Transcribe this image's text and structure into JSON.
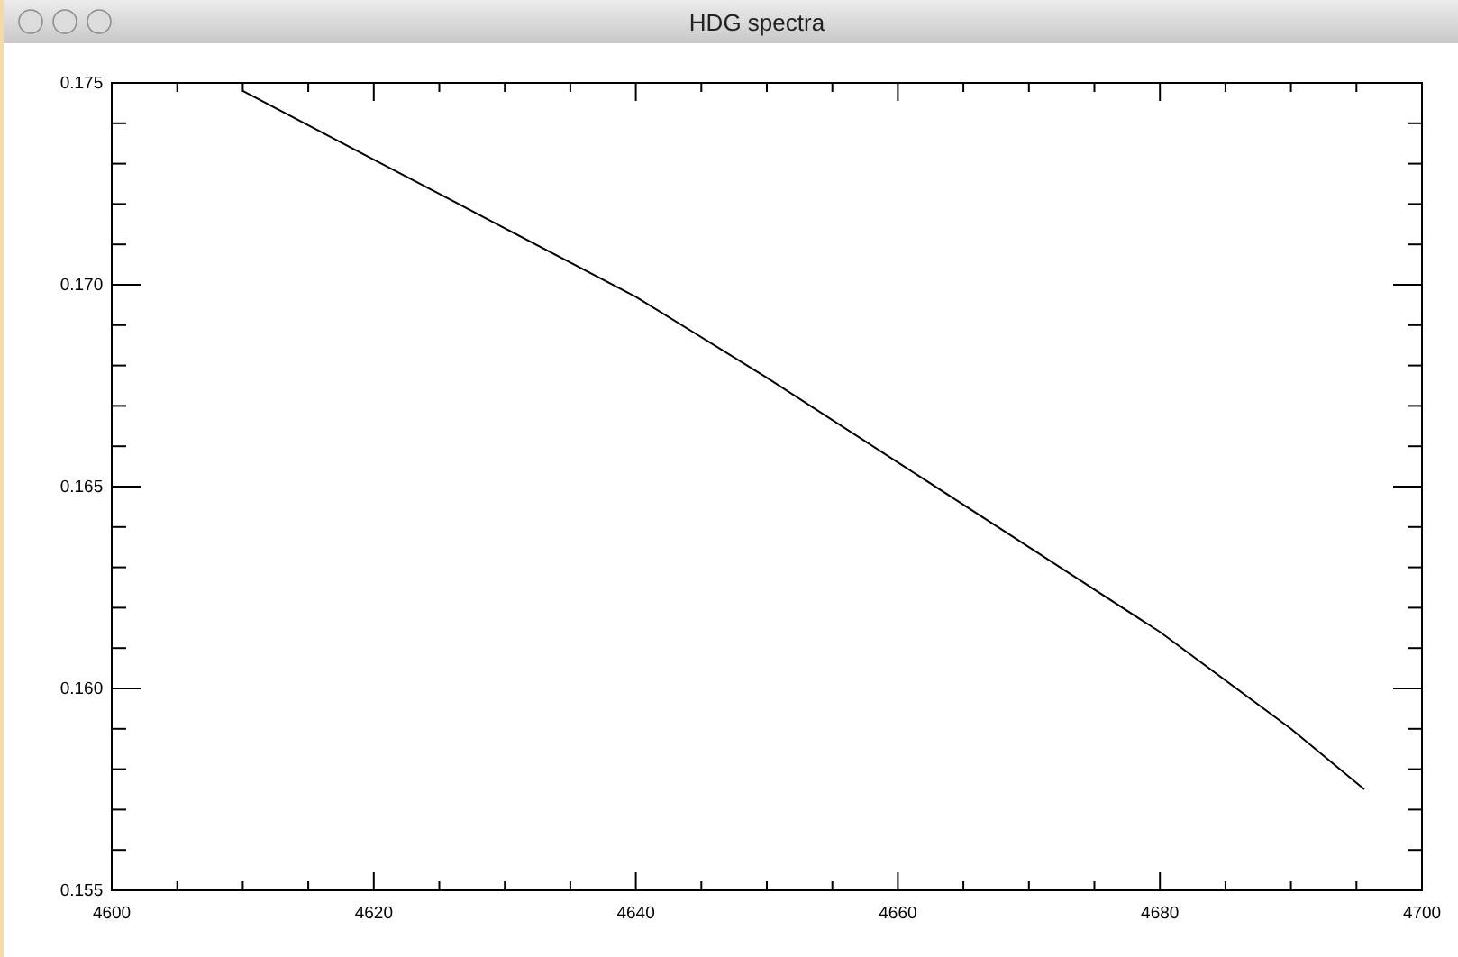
{
  "chart_data": {
    "type": "line",
    "title": "HDG spectra",
    "x": [
      4610,
      4620,
      4630,
      4640,
      4650,
      4660,
      4670,
      4680,
      4690,
      4695.6
    ],
    "series": [
      {
        "color": "#000000",
        "values": [
          0.1748,
          0.1731,
          0.1714,
          0.1697,
          0.1677,
          0.1656,
          0.1635,
          0.1614,
          0.159,
          0.1575
        ]
      }
    ],
    "xlim": [
      4600,
      4700
    ],
    "xticks": [
      4600,
      {
        "value": 4605,
        "label": null
      },
      {
        "value": 4610,
        "label": null
      },
      {
        "value": 4615,
        "label": null
      },
      4620,
      {
        "value": 4625,
        "label": null
      },
      {
        "value": 4630,
        "label": null
      },
      {
        "value": 4635,
        "label": null
      },
      4640,
      {
        "value": 4645,
        "label": null
      },
      {
        "value": 4650,
        "label": null
      },
      {
        "value": 4655,
        "label": null
      },
      4660,
      {
        "value": 4665,
        "label": null
      },
      {
        "value": 4670,
        "label": null
      },
      {
        "value": 4675,
        "label": null
      },
      4680,
      {
        "value": 4685,
        "label": null
      },
      {
        "value": 4690,
        "label": null
      },
      {
        "value": 4695,
        "label": null
      },
      4700
    ],
    "ylim": [
      0.155,
      0.175
    ],
    "yticks": [
      0.155,
      {
        "value": 0.156,
        "label": null
      },
      {
        "value": 0.157,
        "label": null
      },
      {
        "value": 0.158,
        "label": null
      },
      {
        "value": 0.159,
        "label": null
      },
      {
        "value": 0.16,
        "label": "0.160"
      },
      {
        "value": 0.161,
        "label": null
      },
      {
        "value": 0.162,
        "label": null
      },
      {
        "value": 0.163,
        "label": null
      },
      {
        "value": 0.164,
        "label": null
      },
      0.165,
      {
        "value": 0.166,
        "label": null
      },
      {
        "value": 0.167,
        "label": null
      },
      {
        "value": 0.168,
        "label": null
      },
      {
        "value": 0.169,
        "label": null
      },
      {
        "value": 0.17,
        "label": "0.170"
      },
      {
        "value": 0.171,
        "label": null
      },
      {
        "value": 0.172,
        "label": null
      },
      {
        "value": 0.173,
        "label": null
      },
      {
        "value": 0.174,
        "label": null
      },
      0.175
    ],
    "grid": false,
    "marker": "none",
    "line_style": "solid"
  }
}
